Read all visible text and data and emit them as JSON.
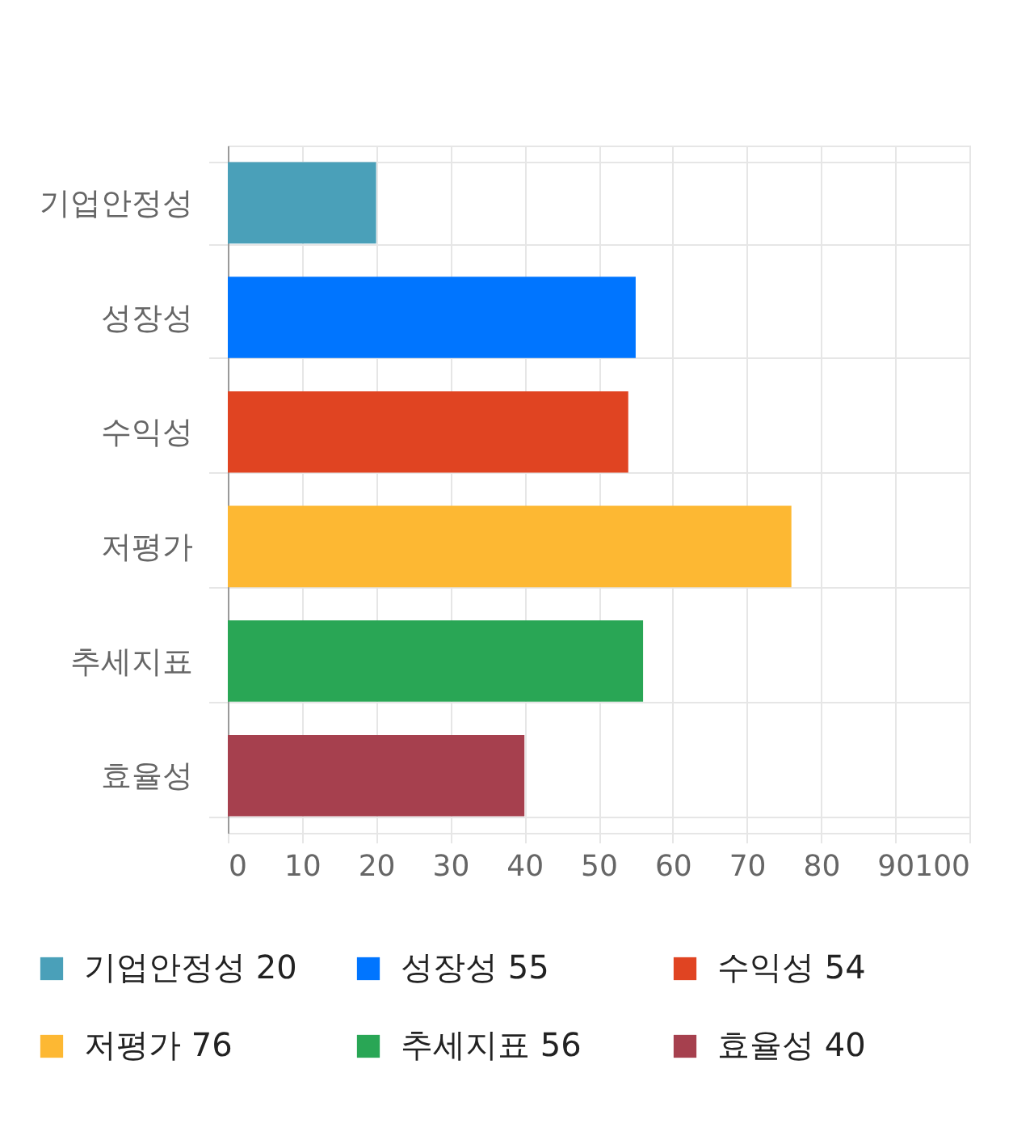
{
  "chart_data": {
    "type": "bar",
    "orientation": "horizontal",
    "categories": [
      "기업안정성",
      "성장성",
      "수익성",
      "저평가",
      "추세지표",
      "효율성"
    ],
    "series": [
      {
        "name": "기업안정성 20",
        "color": "#4aa0b9",
        "values": [
          20,
          null,
          null,
          null,
          null,
          null
        ]
      },
      {
        "name": "성장성 55",
        "color": "#0075ff",
        "values": [
          null,
          55,
          null,
          null,
          null,
          null
        ]
      },
      {
        "name": "수익성 54",
        "color": "#e04422",
        "values": [
          null,
          null,
          54,
          null,
          null,
          null
        ]
      },
      {
        "name": "저평가 76",
        "color": "#fdb833",
        "values": [
          null,
          null,
          null,
          76,
          null,
          null
        ]
      },
      {
        "name": "추세지표 56",
        "color": "#29a655",
        "values": [
          null,
          null,
          null,
          null,
          56,
          null
        ]
      },
      {
        "name": "효율성 40",
        "color": "#a6404e",
        "values": [
          null,
          null,
          null,
          null,
          null,
          40
        ]
      }
    ],
    "xlim": [
      0,
      100
    ],
    "xticks": [
      0,
      10,
      20,
      30,
      40,
      50,
      60,
      70,
      80,
      90,
      100
    ],
    "grid": true,
    "legend": "bottom"
  }
}
